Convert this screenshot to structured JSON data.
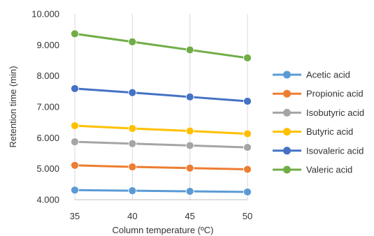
{
  "chart_data": {
    "type": "line",
    "title": "",
    "xlabel": "Column temperature (ºC)",
    "ylabel": "Retention time (min)",
    "x": [
      35,
      40,
      45,
      50
    ],
    "x_tick_labels": [
      "35",
      "40",
      "45",
      "50"
    ],
    "ylim": [
      4,
      10
    ],
    "y_tick_labels": [
      "4.000",
      "5.000",
      "6.000",
      "7.000",
      "8.000",
      "9.000",
      "10.000"
    ],
    "grid": "vertical",
    "legend_position": "right",
    "series": [
      {
        "name": "Acetic acid",
        "color": "#5b9bd5",
        "values": [
          4.31,
          4.29,
          4.27,
          4.25
        ]
      },
      {
        "name": "Propionic acid",
        "color": "#ed7d31",
        "values": [
          5.11,
          5.06,
          5.02,
          4.98
        ]
      },
      {
        "name": "Isobutyric acid",
        "color": "#a5a5a5",
        "values": [
          5.87,
          5.81,
          5.75,
          5.69
        ]
      },
      {
        "name": "Butyric acid",
        "color": "#ffc000",
        "values": [
          6.39,
          6.3,
          6.22,
          6.13
        ]
      },
      {
        "name": "Isovaleric acid",
        "color": "#4472c4",
        "values": [
          7.59,
          7.46,
          7.32,
          7.18
        ]
      },
      {
        "name": "Valeric acid",
        "color": "#70ad47",
        "values": [
          9.36,
          9.1,
          8.84,
          8.58
        ]
      }
    ]
  }
}
